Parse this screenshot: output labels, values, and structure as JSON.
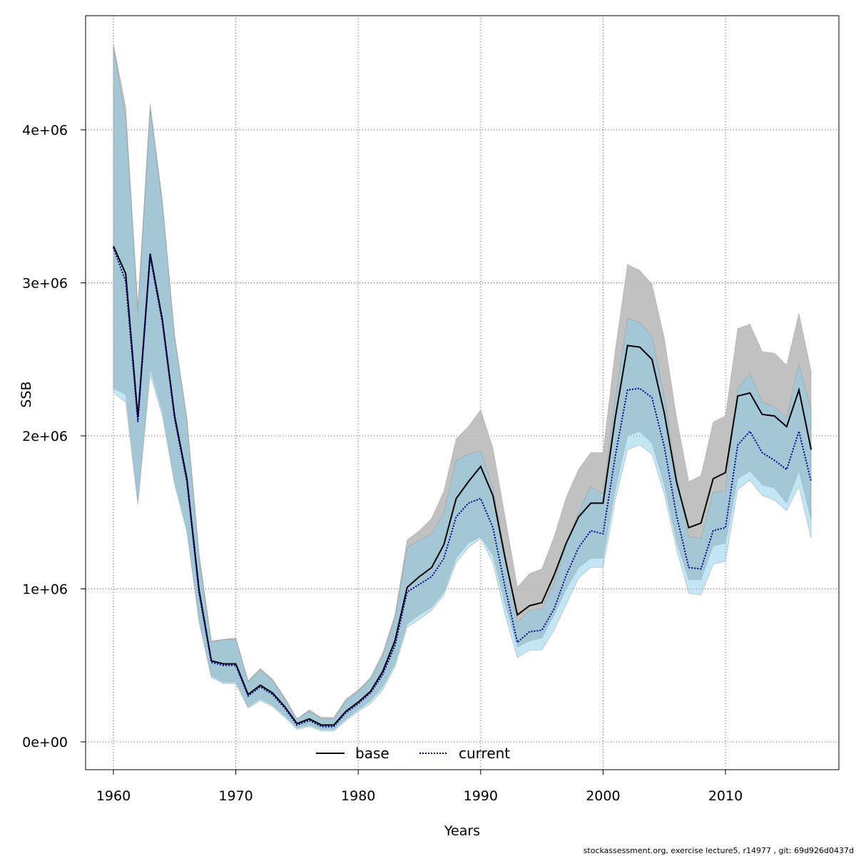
{
  "chart_data": {
    "type": "area",
    "xlabel": "Years",
    "ylabel": "SSB",
    "xlim": [
      1958,
      2019
    ],
    "ylim": [
      -180000,
      4700000
    ],
    "x_ticks": [
      1960,
      1970,
      1980,
      1990,
      2000,
      2010
    ],
    "x_tick_labels": [
      "1960",
      "1970",
      "1980",
      "1990",
      "2000",
      "2010"
    ],
    "y_ticks": [
      0,
      1000000,
      2000000,
      3000000,
      4000000
    ],
    "y_tick_labels": [
      "0e+00",
      "1e+06",
      "2e+06",
      "3e+06",
      "4e+06"
    ],
    "grid": true,
    "legend_position": "bottom-center",
    "footer": "stockassessment.org, exercise  lecture5, r14977 , git: 69d926d0437d",
    "x": [
      1960,
      1961,
      1962,
      1963,
      1964,
      1965,
      1966,
      1967,
      1968,
      1969,
      1970,
      1971,
      1972,
      1973,
      1974,
      1975,
      1976,
      1977,
      1978,
      1979,
      1980,
      1981,
      1982,
      1983,
      1984,
      1985,
      1986,
      1987,
      1988,
      1989,
      1990,
      1991,
      1992,
      1993,
      1994,
      1995,
      1996,
      1997,
      1998,
      1999,
      2000,
      2001,
      2002,
      2003,
      2004,
      2005,
      2006,
      2007,
      2008,
      2009,
      2010,
      2011,
      2012,
      2013,
      2014,
      2015,
      2016,
      2017
    ],
    "series": [
      {
        "name": "base",
        "line_color": "#000000",
        "band_color": "#bebebe",
        "line_style": "solid",
        "values": [
          3240000,
          3060000,
          2120000,
          3190000,
          2760000,
          2130000,
          1720000,
          990000,
          530000,
          510000,
          510000,
          310000,
          370000,
          320000,
          230000,
          120000,
          150000,
          110000,
          110000,
          200000,
          260000,
          330000,
          460000,
          660000,
          1010000,
          1080000,
          1140000,
          1290000,
          1590000,
          1700000,
          1800000,
          1610000,
          1200000,
          830000,
          890000,
          910000,
          1090000,
          1300000,
          1470000,
          1560000,
          1560000,
          2120000,
          2590000,
          2580000,
          2500000,
          2150000,
          1700000,
          1400000,
          1430000,
          1720000,
          1760000,
          2260000,
          2280000,
          2140000,
          2130000,
          2060000,
          2300000,
          1910000
        ],
        "lower": [
          2310000,
          2270000,
          1570000,
          2440000,
          2160000,
          1700000,
          1390000,
          800000,
          430000,
          390000,
          390000,
          230000,
          280000,
          240000,
          170000,
          90000,
          110000,
          80000,
          80000,
          150000,
          210000,
          270000,
          360000,
          510000,
          770000,
          830000,
          880000,
          980000,
          1200000,
          1300000,
          1340000,
          1220000,
          900000,
          620000,
          660000,
          680000,
          830000,
          1000000,
          1140000,
          1200000,
          1200000,
          1650000,
          2000000,
          2030000,
          1950000,
          1680000,
          1310000,
          1060000,
          1060000,
          1280000,
          1300000,
          1720000,
          1770000,
          1680000,
          1660000,
          1560000,
          1770000,
          1450000
        ],
        "upper": [
          4560000,
          4150000,
          2850000,
          4170000,
          3540000,
          2660000,
          2120000,
          1230000,
          660000,
          670000,
          680000,
          400000,
          480000,
          410000,
          290000,
          150000,
          210000,
          160000,
          160000,
          280000,
          340000,
          420000,
          580000,
          830000,
          1320000,
          1380000,
          1460000,
          1640000,
          1980000,
          2060000,
          2170000,
          1920000,
          1470000,
          1010000,
          1100000,
          1130000,
          1340000,
          1600000,
          1780000,
          1890000,
          1890000,
          2560000,
          3120000,
          3080000,
          2990000,
          2640000,
          2120000,
          1700000,
          1740000,
          2090000,
          2130000,
          2700000,
          2730000,
          2550000,
          2540000,
          2460000,
          2800000,
          2420000
        ]
      },
      {
        "name": "current",
        "line_color": "#00008b",
        "band_color": "#87ceeb",
        "line_style": "dotted",
        "values": [
          3230000,
          3010000,
          2090000,
          3170000,
          2740000,
          2110000,
          1700000,
          970000,
          520000,
          500000,
          500000,
          300000,
          360000,
          310000,
          220000,
          110000,
          140000,
          100000,
          100000,
          190000,
          250000,
          320000,
          440000,
          630000,
          980000,
          1030000,
          1080000,
          1200000,
          1470000,
          1560000,
          1590000,
          1400000,
          1010000,
          650000,
          720000,
          730000,
          870000,
          1090000,
          1270000,
          1380000,
          1360000,
          1870000,
          2300000,
          2310000,
          2250000,
          1930000,
          1480000,
          1140000,
          1130000,
          1380000,
          1400000,
          1940000,
          2030000,
          1890000,
          1840000,
          1780000,
          2030000,
          1700000
        ],
        "lower": [
          2280000,
          2220000,
          1550000,
          2400000,
          2130000,
          1680000,
          1370000,
          780000,
          420000,
          380000,
          380000,
          220000,
          270000,
          230000,
          160000,
          80000,
          100000,
          70000,
          70000,
          140000,
          200000,
          250000,
          340000,
          490000,
          750000,
          800000,
          860000,
          960000,
          1170000,
          1270000,
          1330000,
          1170000,
          830000,
          550000,
          600000,
          600000,
          730000,
          900000,
          1070000,
          1140000,
          1140000,
          1580000,
          1910000,
          1940000,
          1880000,
          1620000,
          1260000,
          970000,
          960000,
          1160000,
          1180000,
          1650000,
          1710000,
          1610000,
          1580000,
          1510000,
          1670000,
          1330000
        ],
        "upper": [
          4540000,
          4070000,
          2800000,
          4130000,
          3510000,
          2640000,
          2100000,
          1200000,
          650000,
          670000,
          670000,
          390000,
          470000,
          400000,
          280000,
          150000,
          200000,
          150000,
          150000,
          270000,
          330000,
          410000,
          560000,
          810000,
          1270000,
          1320000,
          1360000,
          1500000,
          1840000,
          1880000,
          1900000,
          1660000,
          1230000,
          780000,
          860000,
          870000,
          1040000,
          1300000,
          1500000,
          1670000,
          1620000,
          2240000,
          2770000,
          2740000,
          2650000,
          2260000,
          1740000,
          1340000,
          1330000,
          1630000,
          1640000,
          2310000,
          2410000,
          2220000,
          2190000,
          2120000,
          2470000,
          2170000
        ]
      }
    ]
  }
}
